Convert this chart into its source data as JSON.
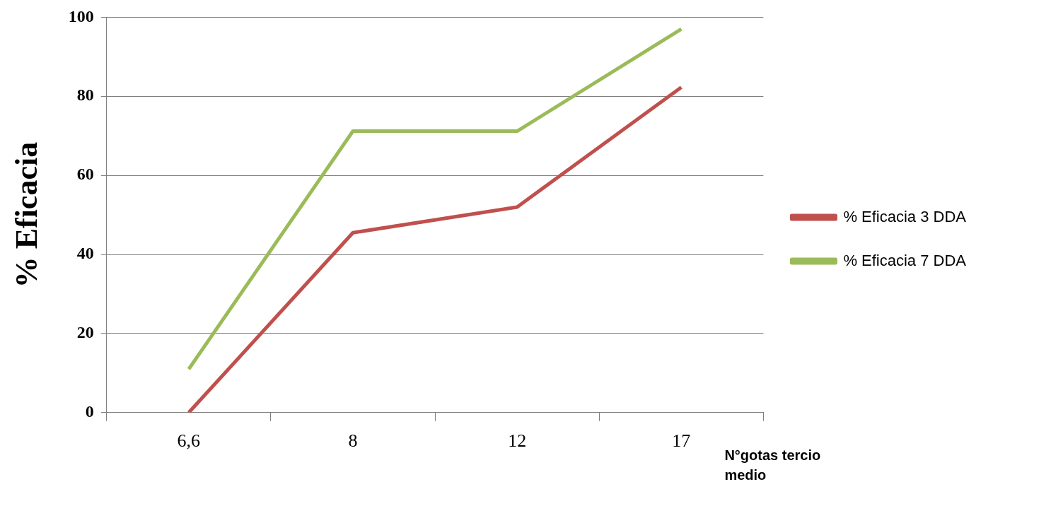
{
  "chart_data": {
    "type": "line",
    "xlabel": "N°gotas tercio medio",
    "ylabel": "% Eficacia",
    "categories": [
      "6,6",
      "8",
      "12",
      "17"
    ],
    "series": [
      {
        "name": "% Eficacia 3 DDA",
        "color": "#c0504d",
        "values": [
          0,
          45.5,
          52,
          82.3
        ]
      },
      {
        "name": "% Eficacia 7 DDA",
        "color": "#9bbb59",
        "values": [
          11,
          71.2,
          71.2,
          97
        ]
      }
    ],
    "ylim": [
      0,
      100
    ],
    "yticks": [
      0,
      20,
      40,
      60,
      80,
      100
    ],
    "grid": "y",
    "legend": "right",
    "marker": "none",
    "line_style": "solid"
  }
}
